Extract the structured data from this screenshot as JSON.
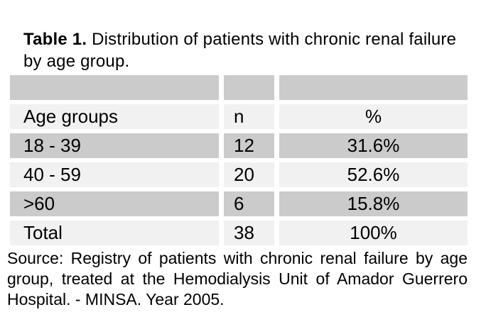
{
  "page": {
    "title_bold": "Table 1.",
    "title_rest": "Distribution of patients with chronic renal failure by age group."
  },
  "table": {
    "header": {
      "age": "Age groups",
      "n": "n",
      "pct": "%"
    },
    "rows": [
      {
        "age": "18 - 39",
        "n": "12",
        "pct": "31.6%"
      },
      {
        "age": "40 - 59",
        "n": "20",
        "pct": "52.6%"
      },
      {
        "age": ">60",
        "n": "6",
        "pct": "15.8%"
      },
      {
        "age": "Total",
        "n": "38",
        "pct": "100%"
      }
    ]
  },
  "source_note": "Source: Registry of patients with chronic renal failure by age group, treated at the Hemodialysis Unit of Amador Guerrero Hospital. - MINSA. Year 2005.",
  "colors": {
    "background": "#ffffff",
    "text": "#000000",
    "row_gray": "#cbcbcb",
    "row_light": "#f1f1f1"
  }
}
